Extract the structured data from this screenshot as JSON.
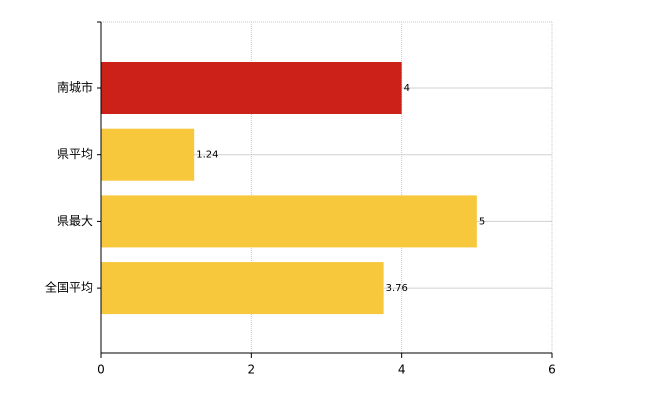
{
  "chart_data": {
    "type": "hbar",
    "categories": [
      "南城市",
      "県平均",
      "県最大",
      "全国平均"
    ],
    "values": [
      4,
      1.24,
      5,
      3.76
    ],
    "colors": [
      "#cc2118",
      "#f7c83c",
      "#f7c83c",
      "#f7c83c"
    ],
    "xlim": [
      0,
      6
    ],
    "xticks": [
      0,
      2,
      4,
      6
    ],
    "grid": true
  }
}
